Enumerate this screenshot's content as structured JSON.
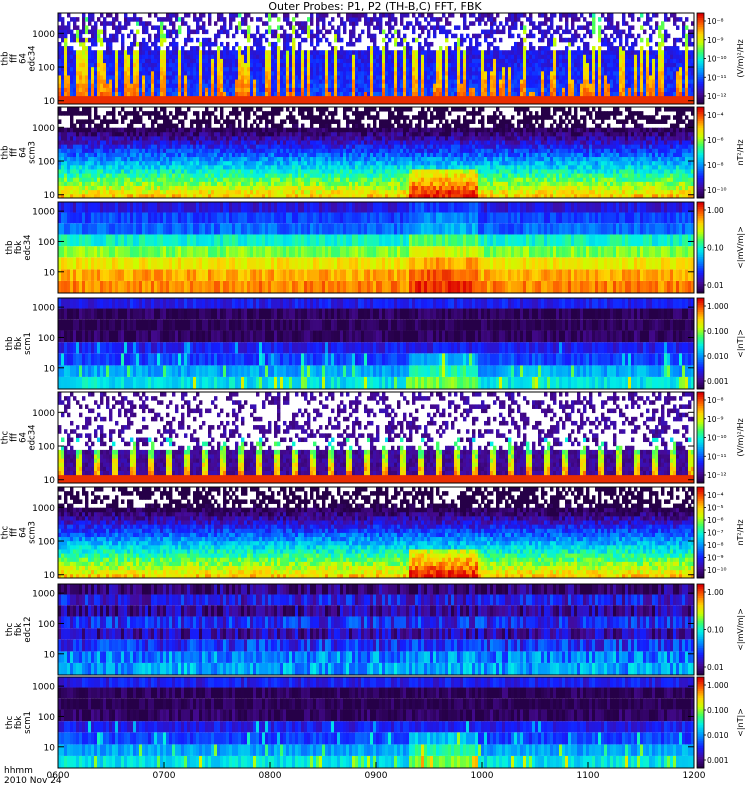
{
  "title": "Outer Probes: P1, P2 (TH-B,C) FFT, FBK",
  "time_axis": {
    "label_line1": "hhmm",
    "label_line2": "2010 Nov 24",
    "ticks": [
      "0600",
      "0700",
      "0800",
      "0900",
      "1000",
      "1100",
      "1200"
    ]
  },
  "chart_data": [
    {
      "type": "heatmap",
      "ylabel": [
        "thb",
        "fff",
        "64",
        "edc34"
      ],
      "yscale": "log",
      "ylim": [
        8,
        4000
      ],
      "yticks": [
        "1000",
        "100",
        "10"
      ],
      "colorbar": {
        "label": "(V/m)²/Hz",
        "scale": "log",
        "ticks": [
          "10⁻⁸",
          "10⁻⁹",
          "10⁻¹⁰",
          "10⁻¹¹",
          "10⁻¹²"
        ]
      },
      "pattern": "bursty-e"
    },
    {
      "type": "heatmap",
      "ylabel": [
        "thb",
        "fff",
        "64",
        "scm3"
      ],
      "yscale": "log",
      "ylim": [
        8,
        4000
      ],
      "yticks": [
        "1000",
        "100",
        "10"
      ],
      "colorbar": {
        "label": "nT²/Hz",
        "scale": "log",
        "ticks": [
          "10⁻⁴",
          "10⁻⁶",
          "10⁻⁸",
          "10⁻¹⁰"
        ]
      },
      "pattern": "scm-fff"
    },
    {
      "type": "heatmap",
      "ylabel": [
        "thb",
        "fbk",
        "edc34"
      ],
      "yscale": "log",
      "ylim": [
        2,
        2000
      ],
      "yticks": [
        "1000",
        "100",
        "10"
      ],
      "colorbar": {
        "label": "<|mV/m|>",
        "scale": "log",
        "ticks": [
          "1.00",
          "0.10",
          "0.01"
        ]
      },
      "pattern": "fbk-e-strong"
    },
    {
      "type": "heatmap",
      "ylabel": [
        "thb",
        "fbk",
        "scm1"
      ],
      "yscale": "log",
      "ylim": [
        2,
        2000
      ],
      "yticks": [
        "1000",
        "100",
        "10"
      ],
      "colorbar": {
        "label": "<|nT|>",
        "scale": "log",
        "ticks": [
          "1.000",
          "0.100",
          "0.010",
          "0.001"
        ]
      },
      "pattern": "fbk-scm"
    },
    {
      "type": "heatmap",
      "ylabel": [
        "thc",
        "fff",
        "64",
        "edc34"
      ],
      "yscale": "log",
      "ylim": [
        8,
        4000
      ],
      "yticks": [
        "1000",
        "100",
        "10"
      ],
      "colorbar": {
        "label": "(V/m)²/Hz",
        "scale": "log",
        "ticks": [
          "10⁻⁸",
          "10⁻⁹",
          "10⁻¹⁰",
          "10⁻¹¹",
          "10⁻¹²"
        ]
      },
      "pattern": "periodic-e"
    },
    {
      "type": "heatmap",
      "ylabel": [
        "thc",
        "fff",
        "64",
        "scm3"
      ],
      "yscale": "log",
      "ylim": [
        8,
        4000
      ],
      "yticks": [
        "1000",
        "100",
        "10"
      ],
      "colorbar": {
        "label": "nT²/Hz",
        "scale": "log",
        "ticks": [
          "10⁻⁴",
          "10⁻⁵",
          "10⁻⁶",
          "10⁻⁷",
          "10⁻⁸",
          "10⁻⁹",
          "10⁻¹⁰"
        ]
      },
      "pattern": "scm-fff"
    },
    {
      "type": "heatmap",
      "ylabel": [
        "thc",
        "fbk",
        "edc12"
      ],
      "yscale": "log",
      "ylim": [
        2,
        2000
      ],
      "yticks": [
        "1000",
        "100",
        "10"
      ],
      "colorbar": {
        "label": "<|mV/m|>",
        "scale": "log",
        "ticks": [
          "1.00",
          "0.10",
          "0.01"
        ]
      },
      "pattern": "fbk-e-weak"
    },
    {
      "type": "heatmap",
      "ylabel": [
        "thc",
        "fbk",
        "scm1"
      ],
      "yscale": "log",
      "ylim": [
        2,
        2000
      ],
      "yticks": [
        "1000",
        "100",
        "10"
      ],
      "colorbar": {
        "label": "<|nT|>",
        "scale": "log",
        "ticks": [
          "1.000",
          "0.100",
          "0.010",
          "0.001"
        ]
      },
      "pattern": "fbk-scm"
    }
  ]
}
